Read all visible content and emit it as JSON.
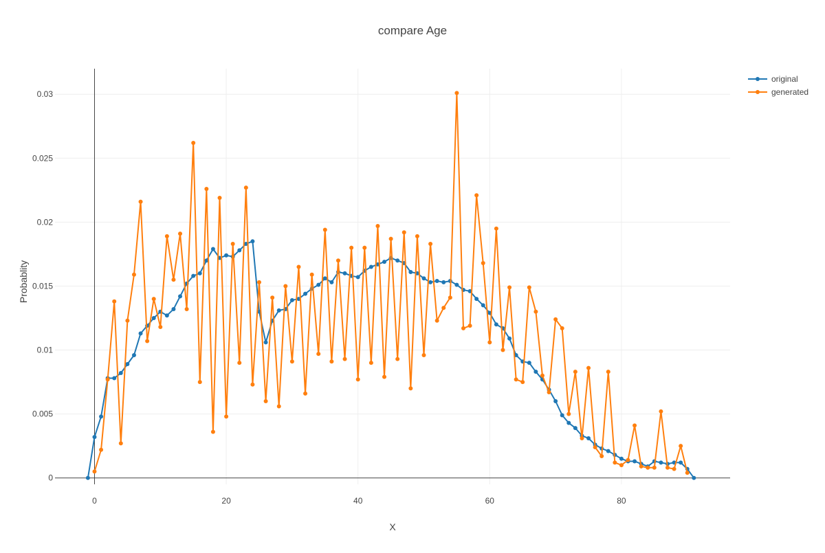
{
  "chart_data": {
    "type": "line",
    "title": "compare Age",
    "xlabel": "X",
    "ylabel": "Probablity",
    "xlim": [
      -6,
      96.5
    ],
    "ylim": [
      -0.0005,
      0.032
    ],
    "xticks": [
      0,
      20,
      40,
      60,
      80
    ],
    "yticks": [
      0,
      0.005,
      0.01,
      0.015,
      0.02,
      0.025,
      0.03
    ],
    "ytick_labels": [
      "0",
      "0.005",
      "0.01",
      "0.015",
      "0.02",
      "0.025",
      "0.03"
    ],
    "grid": true,
    "legend_position": "top-right",
    "series": [
      {
        "name": "original",
        "color": "#1f77b4",
        "x": [
          -1,
          0,
          1,
          2,
          3,
          4,
          5,
          6,
          7,
          8,
          9,
          10,
          11,
          12,
          13,
          14,
          15,
          16,
          17,
          18,
          19,
          20,
          21,
          22,
          23,
          24,
          25,
          26,
          27,
          28,
          29,
          30,
          31,
          32,
          33,
          34,
          35,
          36,
          37,
          38,
          39,
          40,
          41,
          42,
          43,
          44,
          45,
          46,
          47,
          48,
          49,
          50,
          51,
          52,
          53,
          54,
          55,
          56,
          57,
          58,
          59,
          60,
          61,
          62,
          63,
          64,
          65,
          66,
          67,
          68,
          69,
          70,
          71,
          72,
          73,
          74,
          75,
          76,
          77,
          78,
          79,
          80,
          81,
          82,
          83,
          84,
          85,
          86,
          87,
          88,
          89,
          90,
          91
        ],
        "y": [
          0,
          0.0032,
          0.0048,
          0.0078,
          0.0078,
          0.0082,
          0.0089,
          0.0096,
          0.0113,
          0.0119,
          0.0125,
          0.013,
          0.0127,
          0.0132,
          0.0142,
          0.0152,
          0.0158,
          0.016,
          0.017,
          0.0179,
          0.0172,
          0.0174,
          0.0173,
          0.0178,
          0.0183,
          0.0185,
          0.013,
          0.0106,
          0.0123,
          0.0131,
          0.0132,
          0.0139,
          0.014,
          0.0144,
          0.0148,
          0.0151,
          0.0156,
          0.0153,
          0.0161,
          0.016,
          0.0158,
          0.0157,
          0.0162,
          0.0165,
          0.0167,
          0.0169,
          0.0172,
          0.017,
          0.0168,
          0.0161,
          0.016,
          0.0156,
          0.0153,
          0.0154,
          0.0153,
          0.0154,
          0.0151,
          0.0147,
          0.0146,
          0.014,
          0.0135,
          0.0129,
          0.012,
          0.0117,
          0.0109,
          0.0096,
          0.0091,
          0.009,
          0.0083,
          0.0077,
          0.0069,
          0.006,
          0.0049,
          0.0043,
          0.0039,
          0.0033,
          0.0031,
          0.0026,
          0.0023,
          0.0021,
          0.0018,
          0.0015,
          0.0013,
          0.0013,
          0.0011,
          0.0009,
          0.0013,
          0.0012,
          0.0011,
          0.0012,
          0.0012,
          0.0007,
          0
        ]
      },
      {
        "name": "generated",
        "color": "#ff7f0e",
        "x": [
          0,
          1,
          2,
          3,
          4,
          5,
          6,
          7,
          8,
          9,
          10,
          11,
          12,
          13,
          14,
          15,
          16,
          17,
          18,
          19,
          20,
          21,
          22,
          23,
          24,
          25,
          26,
          27,
          28,
          29,
          30,
          31,
          32,
          33,
          34,
          35,
          36,
          37,
          38,
          39,
          40,
          41,
          42,
          43,
          44,
          45,
          46,
          47,
          48,
          49,
          50,
          51,
          52,
          53,
          54,
          55,
          56,
          57,
          58,
          59,
          60,
          61,
          62,
          63,
          64,
          65,
          66,
          67,
          68,
          69,
          70,
          71,
          72,
          73,
          74,
          75,
          76,
          77,
          78,
          79,
          80,
          81,
          82,
          83,
          84,
          85,
          86,
          87,
          88,
          89,
          90
        ],
        "y": [
          0.0005,
          0.0022,
          0.0077,
          0.0138,
          0.0027,
          0.0123,
          0.0159,
          0.0216,
          0.0107,
          0.014,
          0.0118,
          0.0189,
          0.0155,
          0.0191,
          0.0132,
          0.0262,
          0.0075,
          0.0226,
          0.0036,
          0.0219,
          0.0048,
          0.0183,
          0.009,
          0.0227,
          0.0073,
          0.0153,
          0.006,
          0.0141,
          0.0056,
          0.015,
          0.0091,
          0.0165,
          0.0066,
          0.0159,
          0.0097,
          0.0194,
          0.0091,
          0.017,
          0.0093,
          0.018,
          0.0077,
          0.018,
          0.009,
          0.0197,
          0.0079,
          0.0187,
          0.0093,
          0.0192,
          0.007,
          0.0189,
          0.0096,
          0.0183,
          0.0123,
          0.0133,
          0.0141,
          0.0301,
          0.0117,
          0.0119,
          0.0221,
          0.0168,
          0.0106,
          0.0195,
          0.01,
          0.0149,
          0.0077,
          0.0075,
          0.0149,
          0.013,
          0.008,
          0.0067,
          0.0124,
          0.0117,
          0.005,
          0.0083,
          0.0031,
          0.0086,
          0.0024,
          0.0017,
          0.0083,
          0.0012,
          0.001,
          0.0014,
          0.0041,
          0.0009,
          0.0008,
          0.0008,
          0.0052,
          0.0008,
          0.0007,
          0.0025,
          0.0004
        ]
      }
    ]
  }
}
